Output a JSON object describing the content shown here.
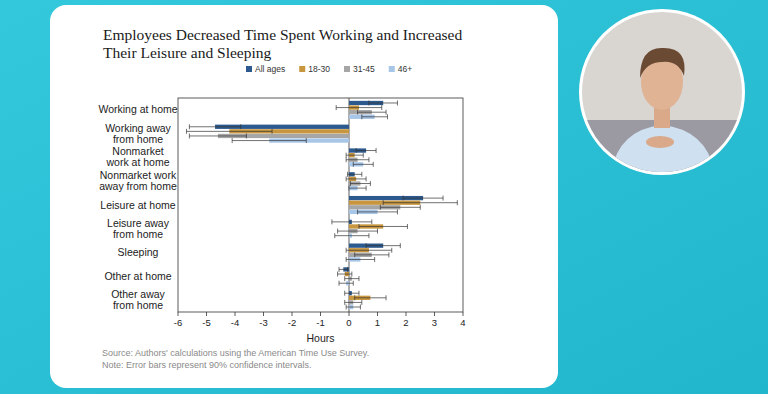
{
  "chart_data": {
    "type": "bar",
    "orientation": "horizontal",
    "title": "Employees Decreased Time Spent Working and Increased Their Leisure and Sleeping",
    "xlabel": "Hours",
    "annotations": [
      "Source: Authors' calculations using the American Time Use Survey.",
      "Note: Error bars represent 90% confidence intervals."
    ],
    "categories": [
      "Working at home",
      "Working away from home",
      "Nonmarket work at home",
      "Nonmarket work away from home",
      "Leisure at home",
      "Leisure away from home",
      "Sleeping",
      "Other at home",
      "Other away from home"
    ],
    "series": [
      {
        "name": "All ages",
        "color": "#2d5a8e",
        "values": [
          1.2,
          -4.7,
          0.6,
          0.2,
          2.6,
          0.1,
          1.2,
          -0.2,
          0.1
        ],
        "errors": [
          0.5,
          0.9,
          0.35,
          0.25,
          0.7,
          0.7,
          0.6,
          0.15,
          0.25
        ]
      },
      {
        "name": "18-30",
        "color": "#c8963e",
        "values": [
          0.35,
          -4.2,
          0.2,
          0.25,
          2.5,
          1.2,
          0.7,
          -0.15,
          0.75
        ],
        "errors": [
          0.8,
          1.5,
          0.3,
          0.35,
          1.3,
          0.85,
          0.8,
          0.25,
          0.55
        ]
      },
      {
        "name": "31-45",
        "color": "#a6a6a6",
        "values": [
          0.8,
          -4.6,
          0.3,
          0.4,
          1.8,
          0.3,
          0.8,
          0.1,
          0.15
        ],
        "errors": [
          0.5,
          1.0,
          0.4,
          0.35,
          0.7,
          0.7,
          0.6,
          0.25,
          0.3
        ]
      },
      {
        "name": "46+",
        "color": "#a8c6e8",
        "values": [
          0.9,
          -2.8,
          0.5,
          0.3,
          1.0,
          0.1,
          0.4,
          -0.1,
          0.15
        ],
        "errors": [
          0.45,
          1.3,
          0.35,
          0.3,
          0.7,
          0.6,
          0.5,
          0.25,
          0.25
        ]
      }
    ],
    "xlim": [
      -6,
      4
    ],
    "xticks": [
      -6,
      -5,
      -4,
      -3,
      -2,
      -1,
      0,
      1,
      2,
      3,
      4
    ],
    "grid": false,
    "legend": "top"
  }
}
